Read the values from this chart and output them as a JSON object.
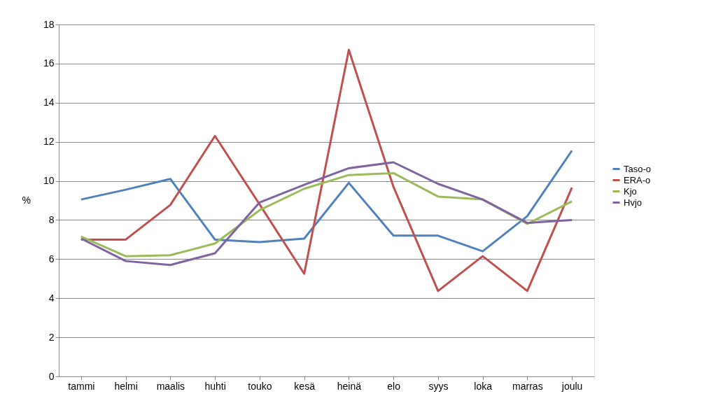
{
  "chart_data": {
    "type": "line",
    "ylabel": "%",
    "categories": [
      "tammi",
      "helmi",
      "maalis",
      "huhti",
      "touko",
      "kesä",
      "heinä",
      "elo",
      "syys",
      "loka",
      "marras",
      "joulu"
    ],
    "series": [
      {
        "name": "Taso-o",
        "color": "#4f81bd",
        "values": [
          9.05,
          9.55,
          10.1,
          7.0,
          6.87,
          7.05,
          9.9,
          7.2,
          7.2,
          6.4,
          8.2,
          11.55
        ]
      },
      {
        "name": "ERA-o",
        "color": "#c0504d",
        "values": [
          7.0,
          7.0,
          8.77,
          12.3,
          8.8,
          5.25,
          16.7,
          9.7,
          4.37,
          6.15,
          4.37,
          9.66
        ]
      },
      {
        "name": "Kjo",
        "color": "#9bbb59",
        "values": [
          7.15,
          6.15,
          6.2,
          6.8,
          8.5,
          9.6,
          10.3,
          10.4,
          9.2,
          9.05,
          7.8,
          8.95
        ]
      },
      {
        "name": "Hvjo",
        "color": "#8064a2",
        "values": [
          7.05,
          5.9,
          5.7,
          6.3,
          8.9,
          9.8,
          10.65,
          10.95,
          9.85,
          9.05,
          7.85,
          8.0
        ]
      }
    ],
    "ylim": [
      0,
      18
    ],
    "yticks": [
      0,
      2,
      4,
      6,
      8,
      10,
      12,
      14,
      16,
      18
    ],
    "grid": "y",
    "legend": "right",
    "marker": "none",
    "line_style": "solid"
  }
}
